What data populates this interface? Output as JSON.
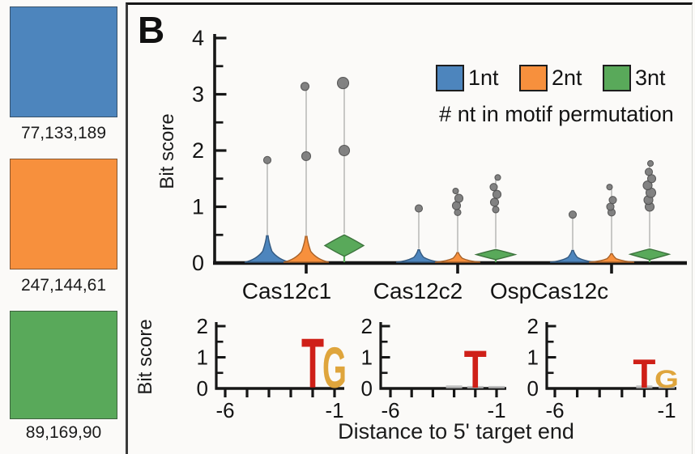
{
  "panel": {
    "label": "B"
  },
  "sidebar": {
    "swatches": [
      {
        "name": "blue",
        "rgb_label": "77,133,189",
        "hex": "#4D85BD"
      },
      {
        "name": "orange",
        "rgb_label": "247,144,61",
        "hex": "#F7903D"
      },
      {
        "name": "green",
        "rgb_label": "89,169,90",
        "hex": "#59A95A"
      }
    ]
  },
  "colors": {
    "axis": "#161616",
    "outlier_fill": "#7c7c7c",
    "outlier_edge": "#525252",
    "logo_T_red": "#cf2018",
    "logo_G_gold": "#dfa53c"
  },
  "chart_data": [
    {
      "type": "violin",
      "title": "",
      "ylabel": "Bit score",
      "ylim": [
        0,
        4
      ],
      "yticks": [
        0,
        1,
        2,
        3,
        4
      ],
      "yminor_step": 0.5,
      "categories": [
        "Cas12c1",
        "Cas12c2",
        "OspCas12c"
      ],
      "series": [
        "1nt",
        "2nt",
        "3nt"
      ],
      "series_colors": [
        "#4D85BD",
        "#F7903D",
        "#59A95A"
      ],
      "legend_caption": "# nt in motif permutation",
      "groups": [
        {
          "category": "Cas12c1",
          "violins": [
            {
              "series": "1nt",
              "body": {
                "shape": "mound",
                "max": 0.47
              },
              "outliers": [
                [
                  1.83,
                  4.5
                ]
              ]
            },
            {
              "series": "2nt",
              "body": {
                "shape": "mound",
                "max": 0.46
              },
              "outliers": [
                [
                  1.9,
                  5.5
                ],
                [
                  3.14,
                  5
                ]
              ]
            },
            {
              "series": "3nt",
              "body": {
                "shape": "diamond",
                "top": 0.5,
                "bottom": 0.12
              },
              "outliers": [
                [
                  2.0,
                  6.5
                ],
                [
                  3.2,
                  7
                ]
              ]
            }
          ]
        },
        {
          "category": "Cas12c2",
          "violins": [
            {
              "series": "1nt",
              "body": {
                "shape": "mound",
                "max": 0.22
              },
              "outliers": [
                [
                  0.97,
                  4.5
                ]
              ]
            },
            {
              "series": "2nt",
              "body": {
                "shape": "mound",
                "max": 0.17
              },
              "outliers": [
                [
                  0.9,
                  4
                ],
                [
                  1.02,
                  5
                ],
                [
                  1.15,
                  5
                ],
                [
                  1.28,
                  3.5
                ]
              ]
            },
            {
              "series": "3nt",
              "body": {
                "shape": "diamond",
                "top": 0.24,
                "bottom": 0.06
              },
              "outliers": [
                [
                  0.95,
                  4
                ],
                [
                  1.08,
                  5
                ],
                [
                  1.22,
                  5
                ],
                [
                  1.35,
                  4.5
                ],
                [
                  1.52,
                  3.5
                ]
              ]
            }
          ]
        },
        {
          "category": "OspCas12c",
          "violins": [
            {
              "series": "1nt",
              "body": {
                "shape": "mound",
                "max": 0.21
              },
              "outliers": [
                [
                  0.86,
                  4.5
                ]
              ]
            },
            {
              "series": "2nt",
              "body": {
                "shape": "mound",
                "max": 0.15
              },
              "outliers": [
                [
                  0.9,
                  4.5
                ],
                [
                  1.0,
                  4.5
                ],
                [
                  1.12,
                  4.5
                ],
                [
                  1.35,
                  3.5
                ]
              ]
            },
            {
              "series": "3nt",
              "body": {
                "shape": "diamond",
                "top": 0.25,
                "bottom": 0.06
              },
              "outliers": [
                [
                  1.0,
                  5.5
                ],
                [
                  1.12,
                  5.5
                ],
                [
                  1.25,
                  6
                ],
                [
                  1.38,
                  5.5
                ],
                [
                  1.5,
                  5
                ],
                [
                  1.62,
                  4.5
                ],
                [
                  1.77,
                  3.5
                ]
              ]
            }
          ]
        }
      ]
    },
    {
      "type": "logo",
      "category": "Cas12c1",
      "ylabel": "Bit score",
      "xlabel": "Distance to 5' target end",
      "ylim": [
        0,
        2
      ],
      "yticks": [
        0,
        1,
        2
      ],
      "xticks": [
        -6,
        -5,
        -4,
        -3,
        -2,
        -1
      ],
      "xtick_labels": [
        "-6",
        "-1"
      ],
      "letters": [
        {
          "char": "T",
          "pos": -2,
          "bits": 1.65,
          "color": "#cf2018"
        },
        {
          "char": "G",
          "pos": -1,
          "bits": 1.35,
          "color": "#dfa53c"
        }
      ],
      "residues": []
    },
    {
      "type": "logo",
      "category": "Cas12c2",
      "ylim": [
        0,
        2
      ],
      "yticks": [
        0,
        1,
        2
      ],
      "xticks": [
        -6,
        -5,
        -4,
        -3,
        -2,
        -1
      ],
      "xtick_labels": [
        "-6",
        "-1"
      ],
      "letters": [
        {
          "char": "T",
          "pos": -2,
          "bits": 1.25,
          "color": "#cf2018"
        }
      ],
      "residues": [
        {
          "pos": -3,
          "bits": 0.1
        },
        {
          "pos": -2,
          "bits": 0.08
        },
        {
          "pos": -1,
          "bits": 0.08
        }
      ]
    },
    {
      "type": "logo",
      "category": "OspCas12c",
      "ylim": [
        0,
        2
      ],
      "yticks": [
        0,
        1,
        2
      ],
      "xticks": [
        -6,
        -5,
        -4,
        -3,
        -2,
        -1
      ],
      "xtick_labels": [
        "-6",
        "-1"
      ],
      "letters": [
        {
          "char": "T",
          "pos": -2,
          "bits": 0.95,
          "color": "#cf2018"
        },
        {
          "char": "G",
          "pos": -1,
          "bits": 0.6,
          "color": "#dfa53c"
        }
      ],
      "residues": [
        {
          "pos": -2,
          "bits": 0.1
        },
        {
          "pos": -1,
          "bits": 0.1
        }
      ]
    }
  ]
}
